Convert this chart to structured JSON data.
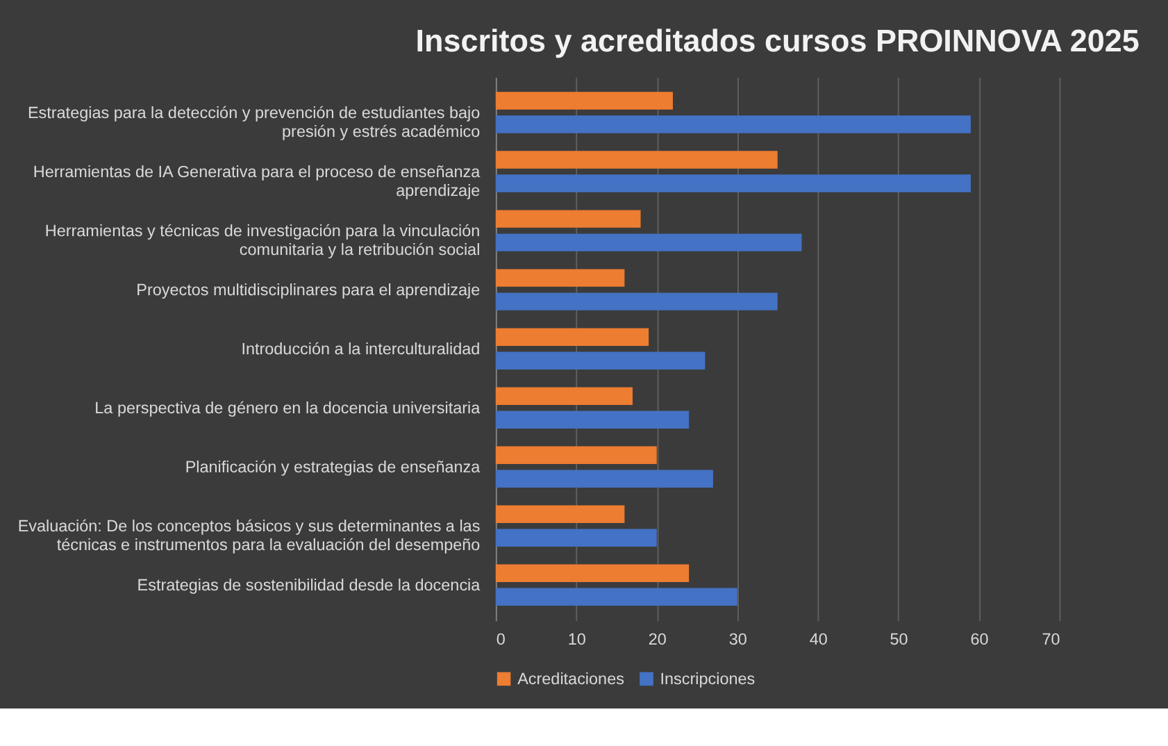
{
  "chart_data": {
    "type": "bar",
    "orientation": "horizontal",
    "title": "Inscritos y acreditados cursos PROINNOVA 2025",
    "categories": [
      "Estrategias para la detección y prevención de estudiantes bajo presión y estrés académico",
      "Herramientas de IA Generativa para el proceso de enseñanza aprendizaje",
      "Herramientas y técnicas de investigación para la vinculación comunitaria y la retribución social",
      "Proyectos multidisciplinares para el aprendizaje",
      "Introducción a la interculturalidad",
      "La perspectiva de género en la docencia universitaria",
      "Planificación y estrategias de enseñanza",
      "Evaluación: De los conceptos básicos y sus determinantes a las técnicas e instrumentos para la evaluación del desempeño",
      "Estrategias de sostenibilidad desde la docencia"
    ],
    "series": [
      {
        "name": "Acreditaciones",
        "color": "#ed7d31",
        "values": [
          22,
          35,
          18,
          16,
          19,
          17,
          20,
          16,
          24
        ]
      },
      {
        "name": "Inscripciones",
        "color": "#4472c4",
        "values": [
          59,
          59,
          38,
          35,
          26,
          24,
          27,
          20,
          30
        ]
      }
    ],
    "xlim": [
      0,
      70
    ],
    "xticks": [
      0,
      10,
      20,
      30,
      40,
      50,
      60,
      70
    ],
    "grid": "x",
    "legend": "bottom"
  }
}
